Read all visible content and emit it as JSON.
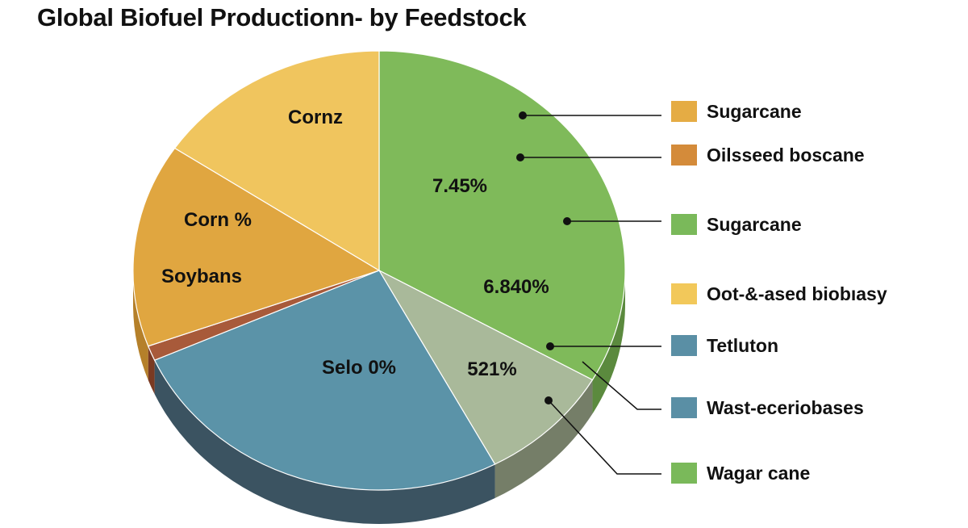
{
  "chart_data": {
    "type": "pie",
    "title": "Global Biofuel Productionn- by Feedstock",
    "style": "3d",
    "slices": [
      {
        "value": 33.3,
        "color": "#7fba5a",
        "side": "#5b8a3e"
      },
      {
        "value": 8.9,
        "color": "#a9b99a",
        "side": "#757e68"
      },
      {
        "value": 26.1,
        "color": "#5b93a8",
        "side": "#3b5361"
      },
      {
        "value": 1.1,
        "color": "#a85a3a",
        "side": "#7a3a22"
      },
      {
        "value": 15.0,
        "color": "#e0a640",
        "side": "#b5802a"
      },
      {
        "value": 15.6,
        "color": "#f0c55e",
        "side": "#c49a3c"
      }
    ],
    "slice_labels": [
      "Cornz",
      "Corn %",
      "Soybans",
      "Selo 0%",
      "521%",
      "7.45%",
      "6.840%"
    ],
    "legend": [
      {
        "label": "Sugarcane",
        "color": "#e5ac44"
      },
      {
        "label": "Oilsseed boscane",
        "color": "#d48b3a"
      },
      {
        "label": "Sugarcane",
        "color": "#7ab95a"
      },
      {
        "label": "Oot-&-ased biobıasy",
        "color": "#f2c85a"
      },
      {
        "label": "Tetluton",
        "color": "#5a8fa5"
      },
      {
        "label": "Wast-eceriobases",
        "color": "#5a8fa5"
      },
      {
        "label": "Wagar cane",
        "color": "#7ab95a"
      }
    ],
    "legend_placement": "right"
  }
}
